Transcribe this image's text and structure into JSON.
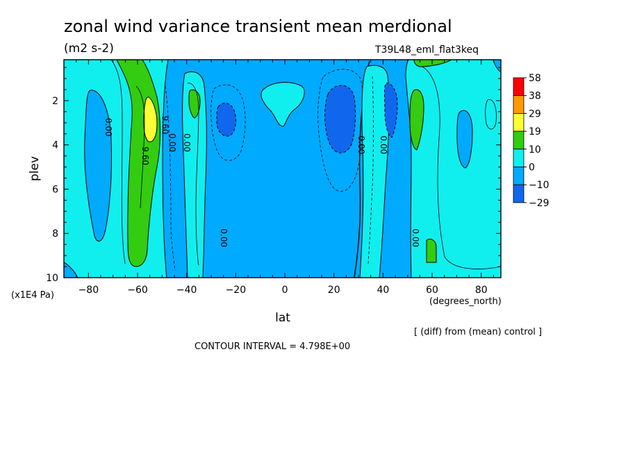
{
  "chart_data": {
    "type": "contour",
    "title": "zonal wind variance transient mean merdional",
    "units": "(m2 s-2)",
    "experiment": "T39L48_eml_flat3keq",
    "xlabel": "lat",
    "xunits": "(degrees_north)",
    "ylabel": "plev",
    "yunits": "(x1E4 Pa)",
    "xlim": [
      -90,
      88
    ],
    "ylim": [
      10,
      0.15
    ],
    "x_ticks": [
      -80,
      -60,
      -40,
      -20,
      0,
      20,
      40,
      60,
      80
    ],
    "y_ticks": [
      2,
      4,
      6,
      8,
      10
    ],
    "x_tick_labels": [
      "−80",
      "−60",
      "−40",
      "−20",
      "0",
      "20",
      "40",
      "60",
      "80"
    ],
    "y_tick_labels": [
      "2",
      "4",
      "6",
      "8",
      "10"
    ],
    "contour_interval_text": "CONTOUR INTERVAL = 4.798E+00",
    "note": "[ (diff) from (mean) control ]",
    "contour_labels": [
      {
        "text": "0.00",
        "lat": -73,
        "plev": 3.2
      },
      {
        "text": "9.60",
        "lat": -58,
        "plev": 4.5
      },
      {
        "text": "9.60",
        "lat": -50,
        "plev": 3.1
      },
      {
        "text": "0.00",
        "lat": -47,
        "plev": 3.9
      },
      {
        "text": "0.00",
        "lat": -41,
        "plev": 3.9
      },
      {
        "text": "0.00",
        "lat": -26,
        "plev": 8.2
      },
      {
        "text": "0.00",
        "lat": 30,
        "plev": 4.0
      },
      {
        "text": "0.00",
        "lat": 39,
        "plev": 4.0
      },
      {
        "text": "0.00",
        "lat": 52,
        "plev": 8.2
      }
    ],
    "colorbar": {
      "levels": [
        "58",
        "38",
        "29",
        "19",
        "10",
        "0",
        "−10",
        "−29"
      ],
      "colors": [
        "#ff0000",
        "#ff9900",
        "#ffff33",
        "#33cc11",
        "#11eeee",
        "#00aaff",
        "#1166ee"
      ]
    },
    "regions": [
      {
        "value_range": "0 to -10",
        "color": "#00aaff",
        "extent": "broad background between 20S and 30N, plus bands near 75S and 70N"
      },
      {
        "value_range": "0 to 10",
        "color": "#11eeee",
        "extent": "positive belts near 65S, 35S, 40N, 65N and equatorial cap"
      },
      {
        "value_range": "10 to 19",
        "color": "#33cc11",
        "extent": "maximum near 58S (plev 2-9) and 52N"
      },
      {
        "value_range": "19 to 29",
        "color": "#ffff33",
        "extent": "core near 55S, plev 2.5"
      },
      {
        "value_range": "-10 to -29",
        "color": "#1166ee",
        "extent": "minima near 25S, 22N, 45N, plev 2-4"
      }
    ]
  }
}
